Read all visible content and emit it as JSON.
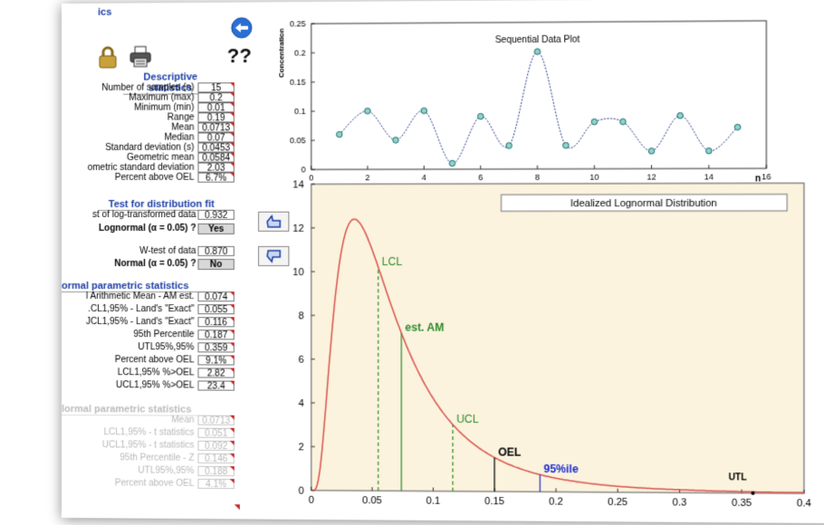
{
  "header": {
    "title_fragment": "ics",
    "help_text": "??"
  },
  "colors": {
    "accent": "#1f3fa6",
    "curve": "#d9534f",
    "green": "#2e8b2e",
    "blue": "#1a2bd0",
    "triangle": "#c0282d"
  },
  "icons": {
    "back": "left-arrow-icon",
    "lock": "padlock-icon",
    "printer": "printer-icon",
    "thumb_up": "thumbs-up-icon",
    "thumb_down": "thumbs-down-icon"
  },
  "descriptive": {
    "title": "Descriptive statistics",
    "rows": [
      {
        "label": "Number of samples (n)",
        "value": "15"
      },
      {
        "label": "Maximum (max)",
        "value": "0.2"
      },
      {
        "label": "Minimum (min)",
        "value": "0.01"
      },
      {
        "label": "Range",
        "value": "0.19"
      },
      {
        "label": "Mean",
        "value": "0.0713"
      },
      {
        "label": "Median",
        "value": "0.07"
      },
      {
        "label": "Standard deviation (s)",
        "value": "0.0453"
      },
      {
        "label": "Geometric mean",
        "value": "0.0584"
      },
      {
        "label": "ometric standard deviation",
        "value": "2.03"
      },
      {
        "label": "Percent above OEL",
        "value": "6.7%"
      }
    ]
  },
  "fit": {
    "title": "Test for distribution fit",
    "log_label": "st of log-transformed data",
    "log_value": "0.932",
    "log_q": "Lognormal (α = 0.05) ?",
    "log_ans": "Yes",
    "w_label": "W-test of data",
    "w_value": "0.870",
    "norm_q": "Normal (α = 0.05) ?",
    "norm_ans": "No"
  },
  "lognormal_stats": {
    "title": "ormal parametric statistics",
    "rows": [
      {
        "label": "l Arithmetic Mean - AM est.",
        "value": "0.074"
      },
      {
        "label": ".CL1,95% - Land's \"Exact\"",
        "value": "0.055"
      },
      {
        "label": "JCL1,95% - Land's \"Exact\"",
        "value": "0.116"
      },
      {
        "label": "95th Percentile",
        "value": "0.187"
      },
      {
        "label": "UTL95%,95%",
        "value": "0.359"
      },
      {
        "label": "Percent above OEL",
        "value": "9.1%"
      },
      {
        "label": "LCL1,95% %>OEL",
        "value": "2.82"
      },
      {
        "label": "UCL1,95% %>OEL",
        "value": "23.4"
      }
    ]
  },
  "normal_stats": {
    "title": "lormal parametric statistics",
    "rows": [
      {
        "label": "Mean",
        "value": "0.0713"
      },
      {
        "label": "LCL1,95% - t statistics",
        "value": "0.051"
      },
      {
        "label": "UCL1,95% - t statistics",
        "value": "0.092"
      },
      {
        "label": "95th Percentile - Z",
        "value": "0.146"
      },
      {
        "label": "UTL95%,95%",
        "value": "0.188"
      },
      {
        "label": "Percent above OEL",
        "value": "4.1%"
      }
    ]
  },
  "chart_data": [
    {
      "type": "line",
      "title": "Sequential Data Plot",
      "xlabel": "n",
      "ylabel": "Concentration",
      "xlim": [
        0,
        16
      ],
      "ylim": [
        0,
        0.25
      ],
      "xticks": [
        "0",
        "2",
        "4",
        "6",
        "8",
        "10",
        "12",
        "14",
        "16"
      ],
      "yticks": [
        "0",
        "0.05",
        "0.1",
        "0.15",
        "0.2",
        "0.25"
      ],
      "x": [
        1,
        2,
        3,
        4,
        5,
        6,
        7,
        8,
        9,
        10,
        11,
        12,
        13,
        14,
        15
      ],
      "y": [
        0.06,
        0.1,
        0.05,
        0.1,
        0.01,
        0.09,
        0.04,
        0.2,
        0.04,
        0.08,
        0.08,
        0.03,
        0.09,
        0.03,
        0.07
      ]
    },
    {
      "type": "line",
      "title": "Idealized Lognormal Distribution",
      "xlim": [
        0,
        0.4
      ],
      "ylim": [
        0,
        14
      ],
      "xticks": [
        "0",
        "0.05",
        "0.1",
        "0.15",
        "0.2",
        "0.25",
        "0.3",
        "0.35",
        "0.4"
      ],
      "yticks": [
        "0",
        "2",
        "4",
        "6",
        "8",
        "10",
        "12",
        "14"
      ],
      "gm": 0.0584,
      "gsd": 2.03,
      "markers": [
        {
          "label": "LCL",
          "x": 0.055,
          "style": "dashed",
          "color": "#2e8b2e"
        },
        {
          "label": "est. AM",
          "x": 0.074,
          "style": "solid",
          "color": "#2e8b2e"
        },
        {
          "label": "UCL",
          "x": 0.116,
          "style": "dashed",
          "color": "#2e8b2e"
        },
        {
          "label": "OEL",
          "x": 0.15,
          "style": "solid",
          "color": "#000000"
        },
        {
          "label": "95%ile",
          "x": 0.187,
          "style": "solid",
          "color": "#1a2bd0"
        },
        {
          "label": "UTL",
          "x": 0.359,
          "style": "point",
          "color": "#000000"
        }
      ]
    }
  ]
}
